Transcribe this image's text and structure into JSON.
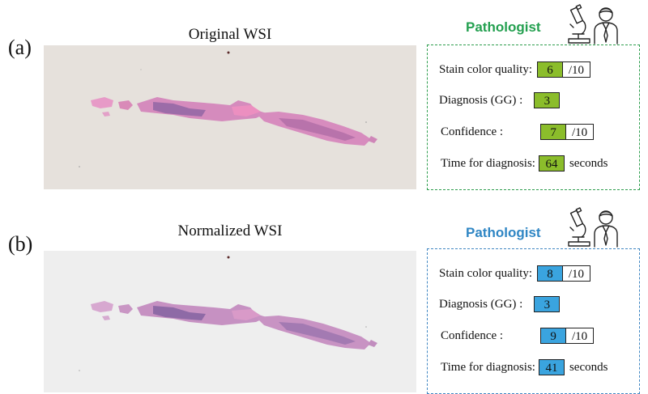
{
  "panels": [
    {
      "letter": "(a)",
      "title": "Original WSI",
      "pathologist": "Pathologist",
      "accent_color": "#24a050",
      "score_color": "#8bbd2b",
      "background": "original",
      "rows": {
        "stain": {
          "label": "Stain color quality:",
          "value": "6",
          "max": "/10"
        },
        "diagnosis": {
          "label": "Diagnosis (GG) :",
          "value": "3"
        },
        "confidence": {
          "label": "Confidence :",
          "value": "7",
          "max": "/10"
        },
        "time": {
          "label": "Time for diagnosis:",
          "value": "64",
          "unit": "seconds"
        }
      }
    },
    {
      "letter": "(b)",
      "title": "Normalized WSI",
      "pathologist": "Pathologist",
      "accent_color": "#2f86c4",
      "score_color": "#3aa4df",
      "background": "normalized",
      "rows": {
        "stain": {
          "label": "Stain color quality:",
          "value": "8",
          "max": "/10"
        },
        "diagnosis": {
          "label": "Diagnosis (GG) :",
          "value": "3"
        },
        "confidence": {
          "label": "Confidence :",
          "value": "9",
          "max": "/10"
        },
        "time": {
          "label": "Time for diagnosis:",
          "value": "41",
          "unit": "seconds"
        }
      }
    }
  ]
}
